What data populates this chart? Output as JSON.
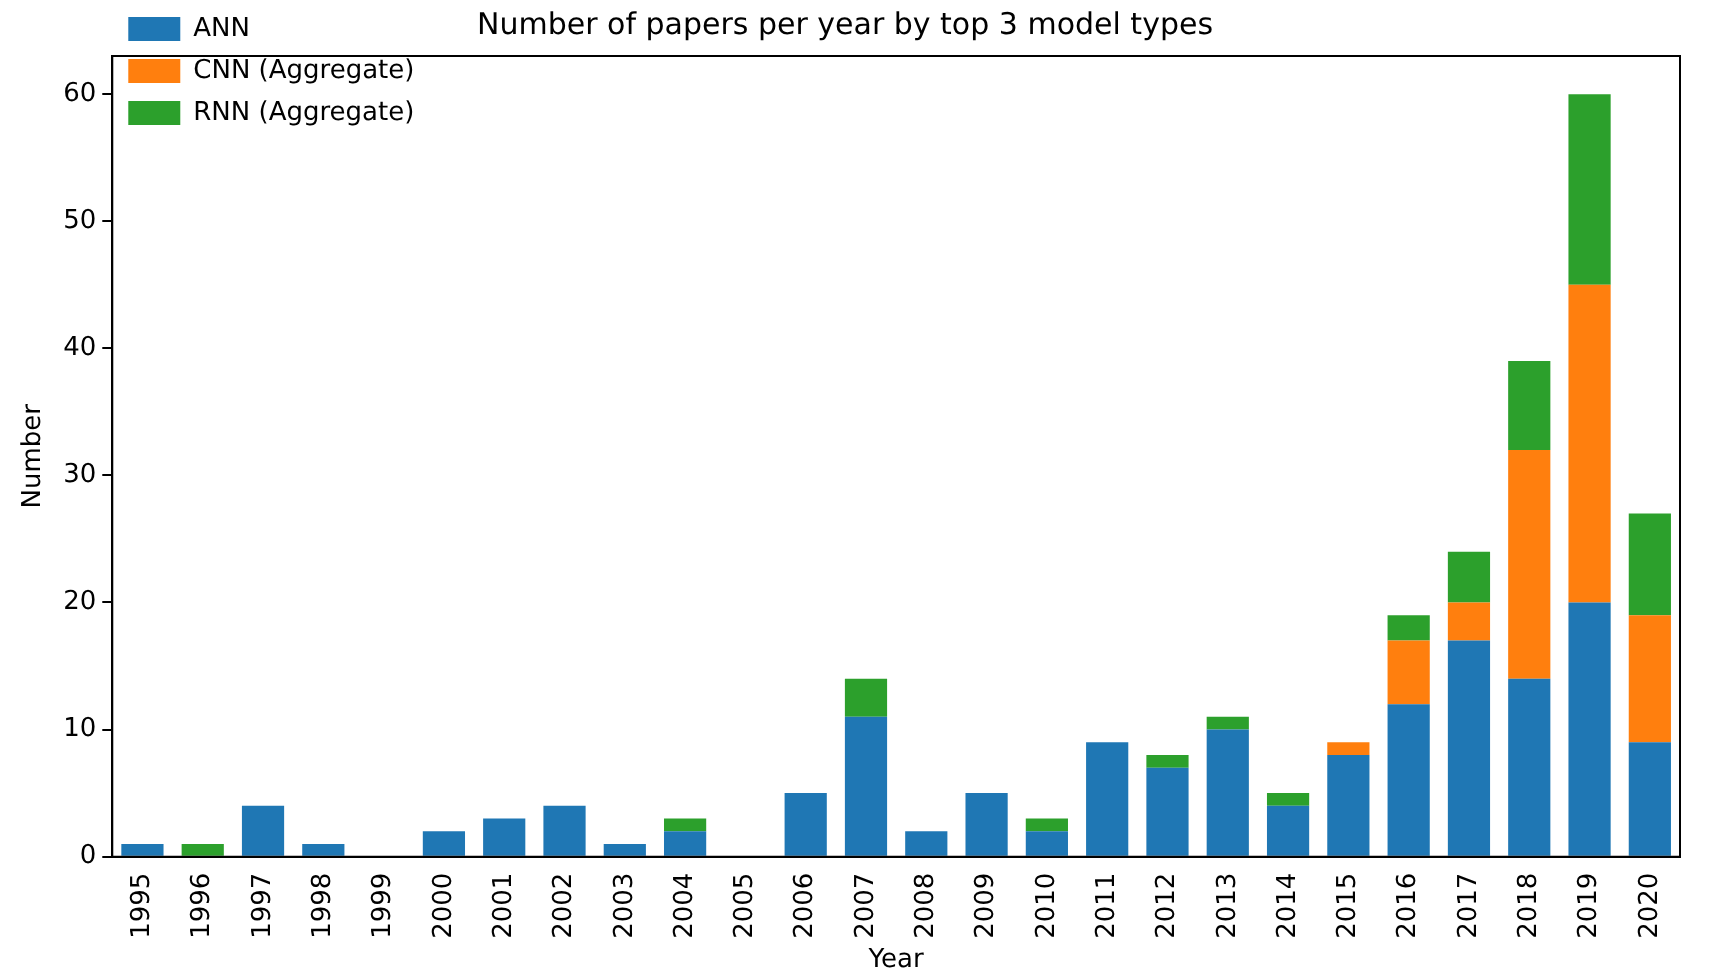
{
  "chart_data": {
    "type": "bar",
    "title": "Number of papers per year by top 3 model types",
    "xlabel": "Year",
    "ylabel": "Number",
    "categories": [
      "1995",
      "1996",
      "1997",
      "1998",
      "1999",
      "2000",
      "2001",
      "2002",
      "2003",
      "2004",
      "2005",
      "2006",
      "2007",
      "2008",
      "2009",
      "2010",
      "2011",
      "2012",
      "2013",
      "2014",
      "2015",
      "2016",
      "2017",
      "2018",
      "2019",
      "2020"
    ],
    "series": [
      {
        "name": "ANN",
        "color": "#1f77b4",
        "values": [
          1,
          0,
          4,
          1,
          0,
          2,
          3,
          4,
          1,
          2,
          0,
          5,
          11,
          2,
          5,
          2,
          9,
          7,
          10,
          4,
          8,
          12,
          17,
          14,
          20,
          9
        ]
      },
      {
        "name": "CNN (Aggregate)",
        "color": "#ff7f0e",
        "values": [
          0,
          0,
          0,
          0,
          0,
          0,
          0,
          0,
          0,
          0,
          0,
          0,
          0,
          0,
          0,
          0,
          0,
          0,
          0,
          0,
          1,
          5,
          3,
          18,
          25,
          10
        ]
      },
      {
        "name": "RNN (Aggregate)",
        "color": "#2ca02c",
        "values": [
          0,
          1,
          0,
          0,
          0,
          0,
          0,
          0,
          0,
          1,
          0,
          0,
          3,
          0,
          0,
          1,
          0,
          1,
          1,
          1,
          0,
          2,
          4,
          7,
          15,
          8
        ]
      }
    ],
    "stacked": true,
    "ylim": [
      0,
      63
    ],
    "yticks": [
      0,
      10,
      20,
      30,
      40,
      50,
      60
    ],
    "grid": false,
    "legend": "top left"
  }
}
